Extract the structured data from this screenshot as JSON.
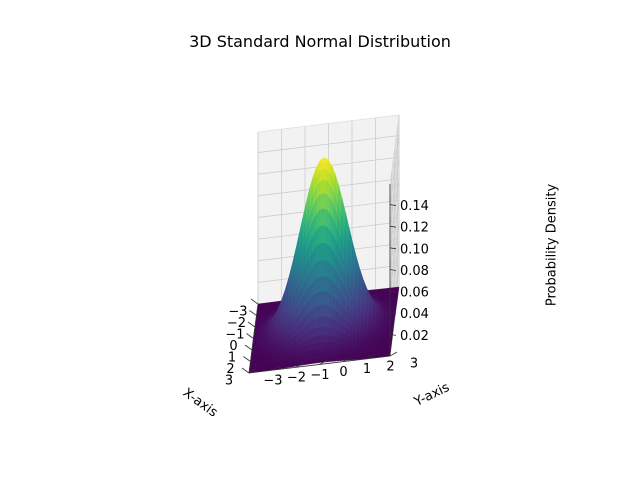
{
  "chart_data": {
    "type": "surface3d",
    "title": "3D Standard Normal Distribution",
    "xlabel": "X-axis",
    "ylabel": "Y-axis",
    "zlabel": "Probability Density",
    "xlim": [
      -3,
      3
    ],
    "ylim": [
      -3,
      3
    ],
    "zlim": [
      0,
      0.159
    ],
    "x_ticks": [
      "−3",
      "−2",
      "−1",
      "0",
      "1",
      "2",
      "3"
    ],
    "x_tick_values": [
      -3,
      -2,
      -1,
      0,
      1,
      2,
      3
    ],
    "y_ticks": [
      "−3",
      "−2",
      "−1",
      "0",
      "1",
      "2",
      "3"
    ],
    "y_tick_values": [
      -3,
      -2,
      -1,
      0,
      1,
      2,
      3
    ],
    "z_ticks": [
      "0.02",
      "0.04",
      "0.06",
      "0.08",
      "0.10",
      "0.12",
      "0.14"
    ],
    "z_tick_values": [
      0.02,
      0.04,
      0.06,
      0.08,
      0.1,
      0.12,
      0.14
    ],
    "function": "exp(-(x^2+y^2)/2)/(2*pi)",
    "peak": {
      "x": 0,
      "y": 0,
      "z": 0.159
    },
    "colormap": "viridis",
    "grid": true,
    "pane_color": "#f2f2f2",
    "grid_color": "#cccccc"
  }
}
